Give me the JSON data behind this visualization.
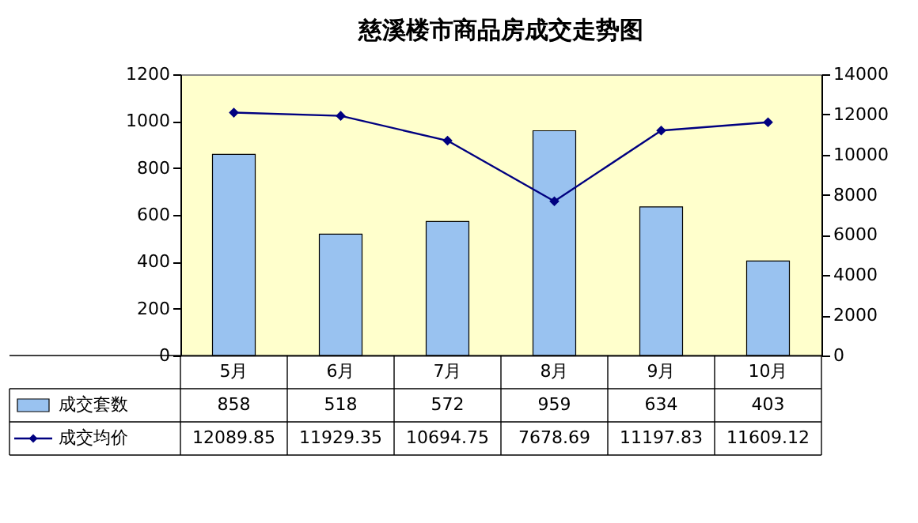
{
  "chart_data": {
    "type": "bar",
    "title": "慈溪楼市商品房成交走势图",
    "categories": [
      "5月",
      "6月",
      "7月",
      "8月",
      "9月",
      "10月"
    ],
    "series": [
      {
        "name": "成交套数",
        "color": "#99c2f0",
        "values": [
          858,
          518,
          572,
          959,
          634,
          403
        ]
      },
      {
        "name": "成交均价",
        "color": "#000080",
        "type": "line",
        "axis": "y2",
        "values": [
          12089.85,
          11929.35,
          10694.75,
          7678.69,
          11197.83,
          11609.12
        ]
      }
    ],
    "ylim": [
      0,
      1200
    ],
    "yticks": [
      0,
      200,
      400,
      600,
      800,
      1000,
      1200
    ],
    "y2lim": [
      0,
      14000
    ],
    "y2ticks": [
      0,
      2000,
      4000,
      6000,
      8000,
      10000,
      12000,
      14000
    ],
    "data_labels": true,
    "legend": "bottom",
    "marker": "diamond",
    "grid": false
  }
}
